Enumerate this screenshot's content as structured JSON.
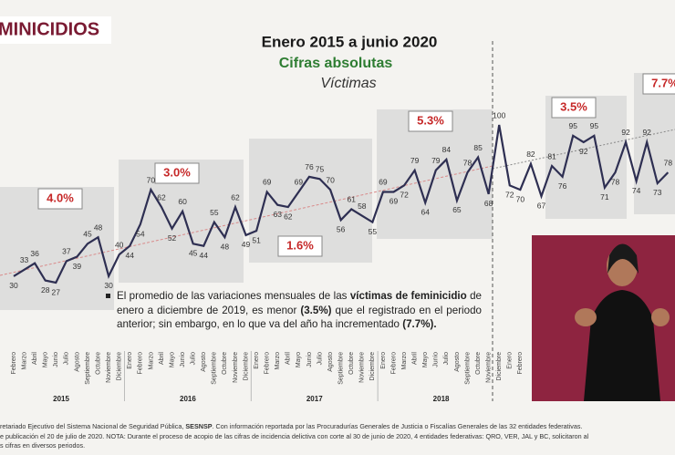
{
  "header": "MINICIDIOS",
  "chart_data": {
    "type": "line",
    "title": "Enero 2015 a junio 2020",
    "subtitle": "Cifras absolutas",
    "caption": "Víctimas",
    "color": "#2e2f52",
    "categories": [
      "Febrero",
      "Marzo",
      "Abril",
      "Mayo",
      "Junio",
      "Julio",
      "Agosto",
      "Septiembre",
      "Octubre",
      "Noviembre",
      "Diciembre",
      "Enero",
      "Febrero",
      "Marzo",
      "Abril",
      "Mayo",
      "Junio",
      "Julio",
      "Agosto",
      "Septiembre",
      "Octubre",
      "Noviembre",
      "Diciembre",
      "Enero",
      "Febrero",
      "Marzo",
      "Abril",
      "Mayo",
      "Junio",
      "Julio",
      "Agosto",
      "Septiembre",
      "Octubre",
      "Noviembre",
      "Diciembre",
      "Enero",
      "Febrero",
      "Marzo",
      "Abril",
      "Mayo",
      "Junio",
      "Julio",
      "Agosto",
      "Septiembre",
      "Octubre",
      "Noviembre",
      "Diciembre",
      "Enero",
      "Febrero",
      null,
      null,
      null,
      null,
      null,
      null,
      null,
      null,
      null,
      null,
      null,
      null,
      null,
      null
    ],
    "values": [
      30,
      33,
      36,
      28,
      27,
      37,
      39,
      45,
      48,
      30,
      40,
      44,
      54,
      70,
      62,
      52,
      60,
      45,
      44,
      55,
      48,
      62,
      49,
      51,
      69,
      63,
      62,
      69,
      76,
      75,
      70,
      56,
      61,
      58,
      55,
      69,
      69,
      72,
      79,
      64,
      79,
      84,
      65,
      78,
      85,
      68,
      100,
      72,
      70,
      82,
      67,
      81,
      76,
      95,
      92,
      95,
      71,
      78,
      92,
      74,
      92,
      73,
      78
    ],
    "years": [
      "2015",
      "2016",
      "2017",
      "2018"
    ],
    "variations": [
      {
        "value": 4.0,
        "label": "4.0%"
      },
      {
        "value": 3.0,
        "label": "3.0%"
      },
      {
        "value": 1.6,
        "label": "1.6%"
      },
      {
        "value": 5.3,
        "label": "5.3%"
      },
      {
        "value": 3.5,
        "label": "3.5%"
      },
      {
        "value": 7.7,
        "label": "7.7%"
      }
    ]
  },
  "note": [
    {
      "text": "El promedio de las variaciones mensuales de las ",
      "bold": false
    },
    {
      "text": "víctimas de feminicidio",
      "bold": true
    },
    {
      "text": " de enero a diciembre de 2019, es menor ",
      "bold": false
    },
    {
      "text": "(3.5%)",
      "bold": true
    },
    {
      "text": " que el registrado en el periodo anterior; sin embargo, en lo que va del año ha incrementado ",
      "bold": false
    },
    {
      "text": "(7.7%).",
      "bold": true
    }
  ],
  "footer": [
    [
      {
        "text": "retariado Ejecutivo del Sistema Nacional de Seguridad Pública, ",
        "bold": false
      },
      {
        "text": "SESNSP",
        "bold": true
      },
      {
        "text": ". Con información reportada por las Procuradurías Generales de Justicia o Fiscalías Generales de las 32 entidades federativas.",
        "bold": false
      }
    ],
    [
      {
        "text": "e publicación el 20 de julio de 2020. NOTA: Durante el proceso de acopio de las cifras de incidencia delictiva con corte al 30 de junio de 2020, 4 entidades federativas: QRO, VER, JAL y BC, solicitaron al",
        "bold": false
      }
    ],
    [
      {
        "text": "s cifras en diversos periodos.",
        "bold": false
      }
    ]
  ]
}
